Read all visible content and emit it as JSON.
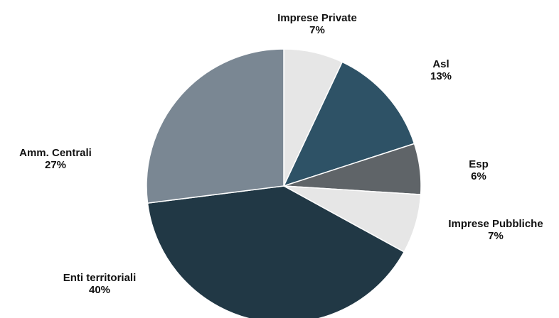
{
  "chart_data": {
    "type": "pie",
    "categories": [
      "Imprese Private",
      "Asl",
      "Esp",
      "Imprese Pubbliche",
      "Enti territoriali",
      "Amm. Centrali"
    ],
    "values": [
      7,
      13,
      6,
      7,
      40,
      27
    ],
    "value_labels": [
      "7%",
      "13%",
      "6%",
      "7%",
      "40%",
      "27%"
    ],
    "colors": [
      "#e6e6e6",
      "#2e5266",
      "#5f6468",
      "#e6e6e6",
      "#213845",
      "#7a8793"
    ]
  }
}
